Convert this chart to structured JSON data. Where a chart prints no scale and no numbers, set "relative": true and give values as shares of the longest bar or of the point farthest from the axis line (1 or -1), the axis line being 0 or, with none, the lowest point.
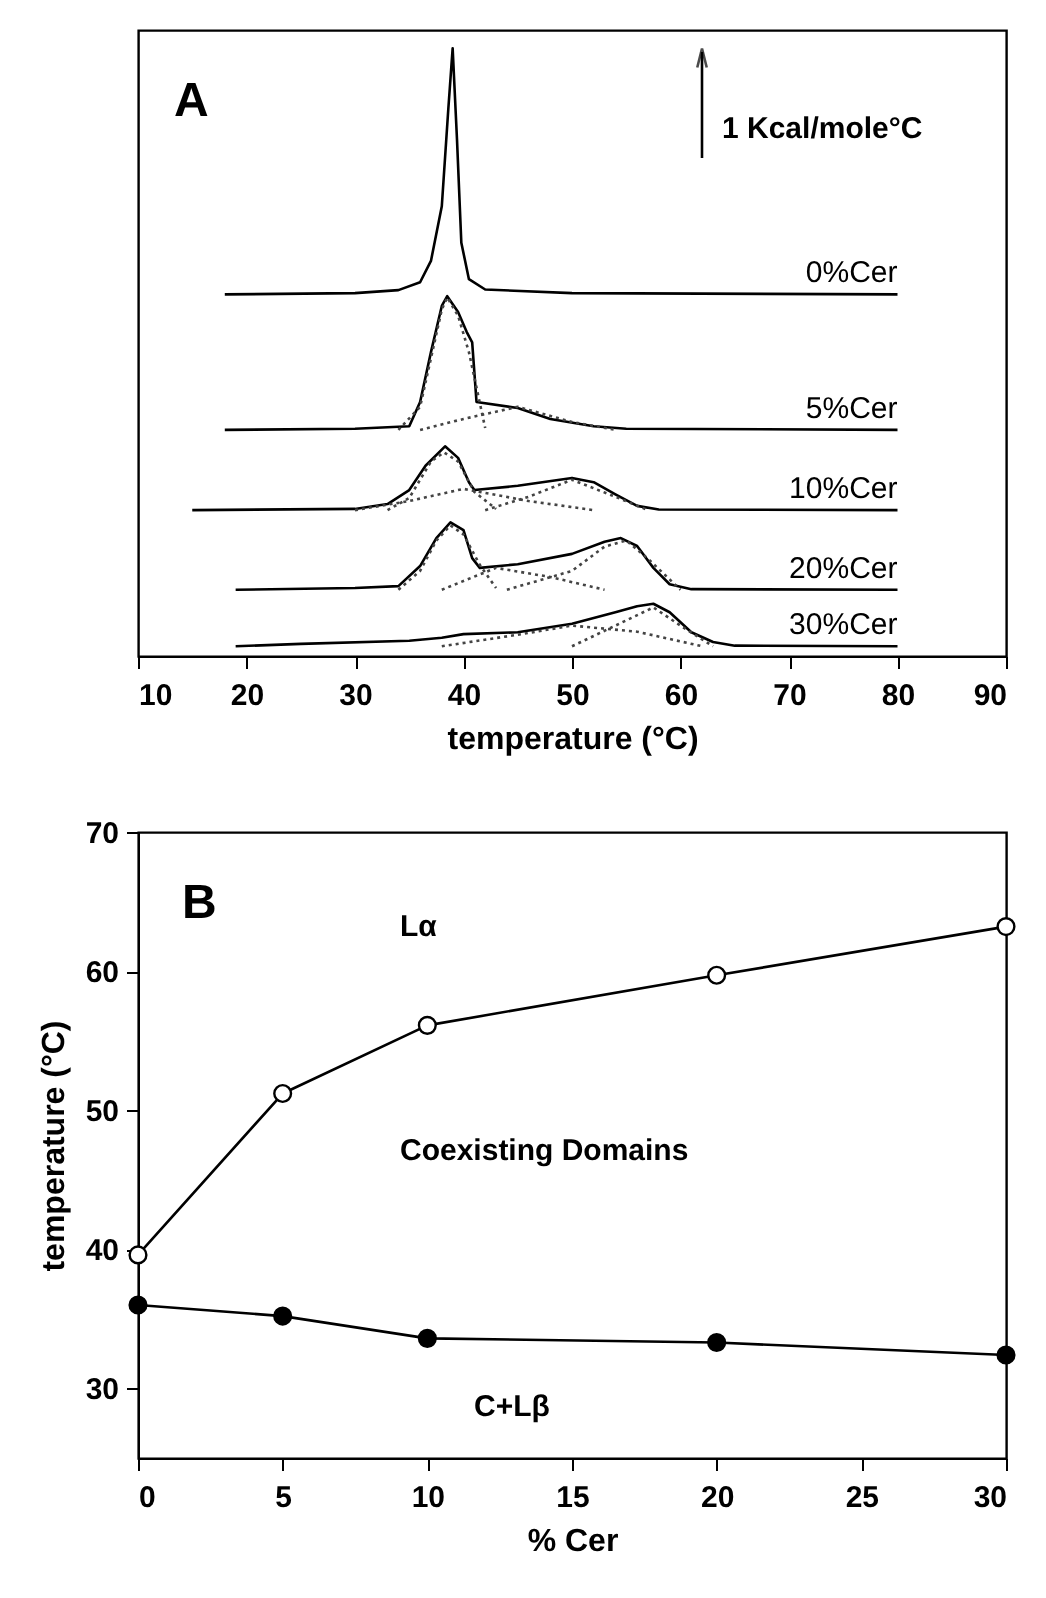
{
  "chart_data": [
    {
      "type": "line",
      "relative": true,
      "xlabel": "temperature (°C)",
      "xlim": [
        10,
        90
      ],
      "xticks": [
        10,
        20,
        30,
        40,
        50,
        60,
        70,
        80,
        90
      ],
      "grid": false,
      "annotations": [
        "A",
        "1 Kcal/mole°C"
      ],
      "series": [
        {
          "name": "0%Cer",
          "color": "#000000",
          "x": [
            18,
            30,
            34,
            36,
            37,
            38,
            38.6,
            39,
            39.4,
            39.8,
            40.5,
            42,
            50,
            80
          ],
          "values": [
            0.595,
            0.597,
            0.602,
            0.615,
            0.65,
            0.74,
            0.9,
            1.0,
            0.85,
            0.68,
            0.62,
            0.603,
            0.597,
            0.595
          ]
        },
        {
          "name": "5%Cer",
          "color": "#000000",
          "x": [
            18,
            30,
            35,
            36,
            37,
            38,
            38.5,
            39.5,
            40.3,
            40.8,
            41.2,
            45,
            48,
            52,
            55,
            80
          ],
          "values": [
            0.372,
            0.374,
            0.378,
            0.418,
            0.5,
            0.576,
            0.592,
            0.566,
            0.533,
            0.516,
            0.418,
            0.408,
            0.39,
            0.378,
            0.374,
            0.372
          ]
        },
        {
          "name": "10%Cer",
          "color": "#000000",
          "x": [
            15,
            30,
            33,
            35,
            36.5,
            38.3,
            39.5,
            40.5,
            41,
            45,
            50,
            52,
            54,
            56,
            58,
            80
          ],
          "values": [
            0.24,
            0.242,
            0.25,
            0.273,
            0.313,
            0.345,
            0.326,
            0.286,
            0.273,
            0.28,
            0.293,
            0.286,
            0.266,
            0.247,
            0.241,
            0.24
          ]
        },
        {
          "name": "20%Cer",
          "color": "#000000",
          "x": [
            19,
            30,
            34,
            36,
            37.5,
            38.8,
            40,
            40.8,
            41.5,
            45,
            50,
            53,
            54.5,
            56,
            57.5,
            59,
            61,
            80
          ],
          "values": [
            0.109,
            0.112,
            0.115,
            0.148,
            0.194,
            0.22,
            0.207,
            0.161,
            0.145,
            0.151,
            0.168,
            0.188,
            0.194,
            0.181,
            0.145,
            0.118,
            0.11,
            0.109
          ]
        },
        {
          "name": "30%Cer",
          "color": "#000000",
          "x": [
            19,
            25,
            35,
            38,
            40,
            45,
            50,
            54,
            56,
            57.5,
            59,
            61,
            63,
            65,
            80
          ],
          "values": [
            0.016,
            0.02,
            0.025,
            0.03,
            0.036,
            0.039,
            0.053,
            0.072,
            0.082,
            0.086,
            0.072,
            0.039,
            0.023,
            0.017,
            0.016
          ]
        },
        {
          "color": "#444444",
          "line_style": "dotted",
          "x": [
            34,
            36,
            37,
            38,
            38.5,
            39.5,
            40.5,
            42
          ],
          "values": [
            0.372,
            0.41,
            0.49,
            0.57,
            0.59,
            0.56,
            0.5,
            0.375
          ]
        },
        {
          "color": "#444444",
          "line_style": "dotted",
          "x": [
            36,
            40,
            45,
            50,
            54
          ],
          "values": [
            0.372,
            0.39,
            0.41,
            0.385,
            0.372
          ]
        },
        {
          "color": "#444444",
          "line_style": "dotted",
          "x": [
            33,
            35,
            37,
            38.2,
            39.5,
            41,
            43
          ],
          "values": [
            0.24,
            0.26,
            0.32,
            0.335,
            0.32,
            0.27,
            0.242
          ]
        },
        {
          "color": "#444444",
          "line_style": "dotted",
          "x": [
            30,
            35,
            40,
            46,
            52
          ],
          "values": [
            0.24,
            0.255,
            0.275,
            0.255,
            0.24
          ]
        },
        {
          "color": "#444444",
          "line_style": "dotted",
          "x": [
            42,
            46,
            50,
            54,
            57
          ],
          "values": [
            0.24,
            0.262,
            0.29,
            0.262,
            0.24
          ]
        },
        {
          "color": "#444444",
          "line_style": "dotted",
          "x": [
            34,
            36,
            37.5,
            38.8,
            40,
            41.5,
            43
          ],
          "values": [
            0.109,
            0.14,
            0.19,
            0.215,
            0.2,
            0.15,
            0.112
          ]
        },
        {
          "color": "#444444",
          "line_style": "dotted",
          "x": [
            38,
            43,
            48,
            53
          ],
          "values": [
            0.109,
            0.145,
            0.13,
            0.109
          ]
        },
        {
          "color": "#444444",
          "line_style": "dotted",
          "x": [
            44,
            50,
            53,
            55,
            57,
            60
          ],
          "values": [
            0.109,
            0.14,
            0.18,
            0.19,
            0.16,
            0.109
          ]
        },
        {
          "color": "#444444",
          "line_style": "dotted",
          "x": [
            50,
            54,
            57.5,
            60,
            63
          ],
          "values": [
            0.016,
            0.05,
            0.08,
            0.05,
            0.016
          ]
        },
        {
          "color": "#444444",
          "line_style": "dotted",
          "x": [
            38,
            45,
            50,
            56,
            62
          ],
          "values": [
            0.016,
            0.035,
            0.05,
            0.04,
            0.016
          ]
        }
      ]
    },
    {
      "type": "line",
      "xlabel": "% Cer",
      "ylabel": "temperature (°C)",
      "xlim": [
        0,
        30
      ],
      "xticks": [
        0,
        5,
        10,
        15,
        20,
        25,
        30
      ],
      "ylim": [
        25,
        70
      ],
      "yticks": [
        30,
        40,
        50,
        60,
        70
      ],
      "grid": false,
      "marker": "circle",
      "annotations": [
        "B",
        "Lα",
        "Coexisting Domains",
        "C+Lβ"
      ],
      "x": [
        0,
        5,
        10,
        20,
        30
      ],
      "series": [
        {
          "color": "#ffffff",
          "values": [
            39.6,
            51.2,
            56.1,
            59.7,
            63.2
          ]
        },
        {
          "color": "#000000",
          "values": [
            36.0,
            35.2,
            33.6,
            33.3,
            32.4
          ]
        }
      ]
    }
  ]
}
